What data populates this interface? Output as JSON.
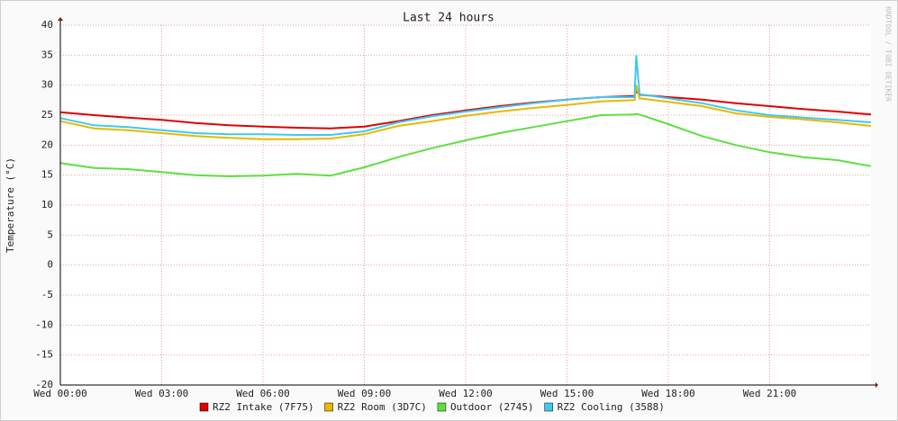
{
  "chart_data": {
    "type": "line",
    "title": "Last 24 hours",
    "ylabel": "Temperature (°C)",
    "watermark": "RRDTOOL / TOBI OETIKER",
    "x": [
      0,
      1,
      2,
      3,
      4,
      5,
      6,
      7,
      8,
      9,
      10,
      11,
      12,
      13,
      14,
      15,
      16,
      17,
      17.05,
      17.15,
      18,
      19,
      20,
      21,
      22,
      23,
      24
    ],
    "xlim": [
      0,
      24
    ],
    "xticks": [
      {
        "value": 0,
        "label": "Wed 00:00"
      },
      {
        "value": 3,
        "label": "Wed 03:00"
      },
      {
        "value": 6,
        "label": "Wed 06:00"
      },
      {
        "value": 9,
        "label": "Wed 09:00"
      },
      {
        "value": 12,
        "label": "Wed 12:00"
      },
      {
        "value": 15,
        "label": "Wed 15:00"
      },
      {
        "value": 18,
        "label": "Wed 18:00"
      },
      {
        "value": 21,
        "label": "Wed 21:00"
      }
    ],
    "ylim": [
      -20,
      40
    ],
    "yticks": [
      -20,
      -15,
      -10,
      -5,
      0,
      5,
      10,
      15,
      20,
      25,
      30,
      35,
      40
    ],
    "grid": true,
    "legend": "bottom",
    "series": [
      {
        "name": "RZ2 Intake (7F75)",
        "color": "#e00000",
        "values": [
          25.5,
          25,
          24.6,
          24.2,
          23.7,
          23.3,
          23.1,
          22.9,
          22.8,
          23.1,
          24,
          25,
          25.8,
          26.5,
          27.1,
          27.6,
          28,
          28.2,
          29,
          28.4,
          28,
          27.6,
          27,
          26.5,
          26,
          25.6,
          25.1
        ]
      },
      {
        "name": "RZ2 Room (3D7C)",
        "color": "#e8b800",
        "values": [
          24,
          22.8,
          22.5,
          22,
          21.5,
          21.2,
          21,
          21,
          21.1,
          21.8,
          23.2,
          24,
          24.9,
          25.6,
          26.2,
          26.7,
          27.3,
          27.5,
          30,
          27.8,
          27.2,
          26.5,
          25.3,
          24.7,
          24.3,
          23.8,
          23.2
        ]
      },
      {
        "name": "Outdoor (2745)",
        "color": "#5ce040",
        "values": [
          17,
          16.2,
          16,
          15.5,
          15,
          14.8,
          14.9,
          15.2,
          14.9,
          16.3,
          18,
          19.5,
          20.8,
          22,
          23,
          24,
          25,
          25.1,
          25.2,
          25.1,
          23.5,
          21.5,
          20,
          18.8,
          18,
          17.5,
          16.5
        ]
      },
      {
        "name": "RZ2 Cooling (3588)",
        "color": "#40c8f0",
        "values": [
          24.5,
          23.3,
          23,
          22.5,
          22,
          21.8,
          21.8,
          21.7,
          21.7,
          22.3,
          23.8,
          24.8,
          25.6,
          26.3,
          27,
          27.6,
          28,
          28,
          35,
          28.5,
          27.8,
          27,
          25.8,
          25,
          24.6,
          24.2,
          23.8
        ]
      }
    ]
  }
}
